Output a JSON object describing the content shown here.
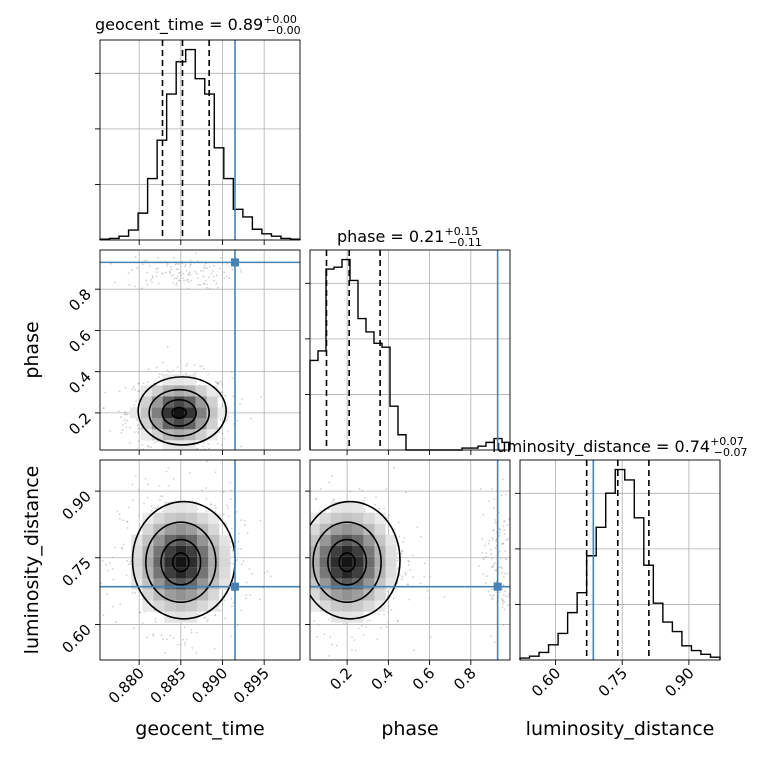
{
  "chart_data": {
    "type": "corner",
    "parameters": [
      "geocent_time",
      "phase",
      "luminosity_distance"
    ],
    "truths": {
      "geocent_time": 0.8915,
      "phase": 0.93,
      "luminosity_distance": 0.685
    },
    "marginals": {
      "geocent_time": {
        "title": {
          "main": "geocent_time = 0.89",
          "sup": "+0.00",
          "sub": "−0.00"
        },
        "range": [
          0.8753,
          0.8993
        ],
        "quantiles": [
          0.8828,
          0.8852,
          0.8884
        ],
        "hist": [
          1,
          2,
          5,
          13,
          35,
          80,
          130,
          190,
          232,
          248,
          210,
          190,
          120,
          80,
          40,
          30,
          14,
          8,
          5,
          2,
          1
        ],
        "xticks": [
          0.88,
          0.885,
          0.89,
          0.895
        ],
        "xtick_labels": [
          "0.880",
          "0.885",
          "0.890",
          "0.895"
        ]
      },
      "phase": {
        "title": {
          "main": "phase = 0.21",
          "sup": "+0.15",
          "sub": "−0.11"
        },
        "range": [
          0.02,
          0.99
        ],
        "quantiles": [
          0.1,
          0.21,
          0.36
        ],
        "hist": [
          47,
          52,
          95,
          96,
          100,
          89,
          69,
          62,
          56,
          54,
          23,
          8,
          0,
          0,
          0,
          0,
          0,
          0,
          0,
          1,
          1,
          2,
          4,
          6,
          4
        ],
        "xticks": [
          0.2,
          0.4,
          0.6,
          0.8
        ],
        "xtick_labels": [
          "0.2",
          "0.4",
          "0.6",
          "0.8"
        ],
        "yticks": [
          0.2,
          0.4,
          0.6,
          0.8
        ],
        "ytick_labels": [
          "0.2",
          "0.4",
          "0.6",
          "0.8"
        ]
      },
      "luminosity_distance": {
        "title": {
          "main": "luminosity_distance = 0.74",
          "sup": "+0.07",
          "sub": "−0.07"
        },
        "range": [
          0.52,
          0.97
        ],
        "quantiles": [
          0.67,
          0.74,
          0.81
        ],
        "hist": [
          2,
          4,
          8,
          16,
          28,
          50,
          71,
          110,
          140,
          176,
          201,
          190,
          150,
          100,
          60,
          40,
          30,
          15,
          10,
          6,
          3
        ],
        "xticks": [
          0.6,
          0.75,
          0.9
        ],
        "xtick_labels": [
          "0.60",
          "0.75",
          "0.90"
        ],
        "yticks": [
          0.6,
          0.75,
          0.9
        ],
        "ytick_labels": [
          "0.60",
          "0.75",
          "0.90"
        ]
      }
    },
    "joint": [
      {
        "x": "geocent_time",
        "y": "phase",
        "center": [
          0.8848,
          0.2
        ],
        "spread": [
          0.0024,
          0.075
        ]
      },
      {
        "x": "geocent_time",
        "y": "luminosity_distance",
        "center": [
          0.885,
          0.74
        ],
        "spread": [
          0.0028,
          0.06
        ]
      },
      {
        "x": "phase",
        "y": "luminosity_distance",
        "center": [
          0.2,
          0.74
        ],
        "spread": [
          0.11,
          0.06
        ]
      }
    ],
    "grid": true,
    "colors": {
      "truth": "#4682b4",
      "hist": "#000000",
      "grid": "#b0b0b0",
      "points": "#9a9a9a"
    }
  }
}
